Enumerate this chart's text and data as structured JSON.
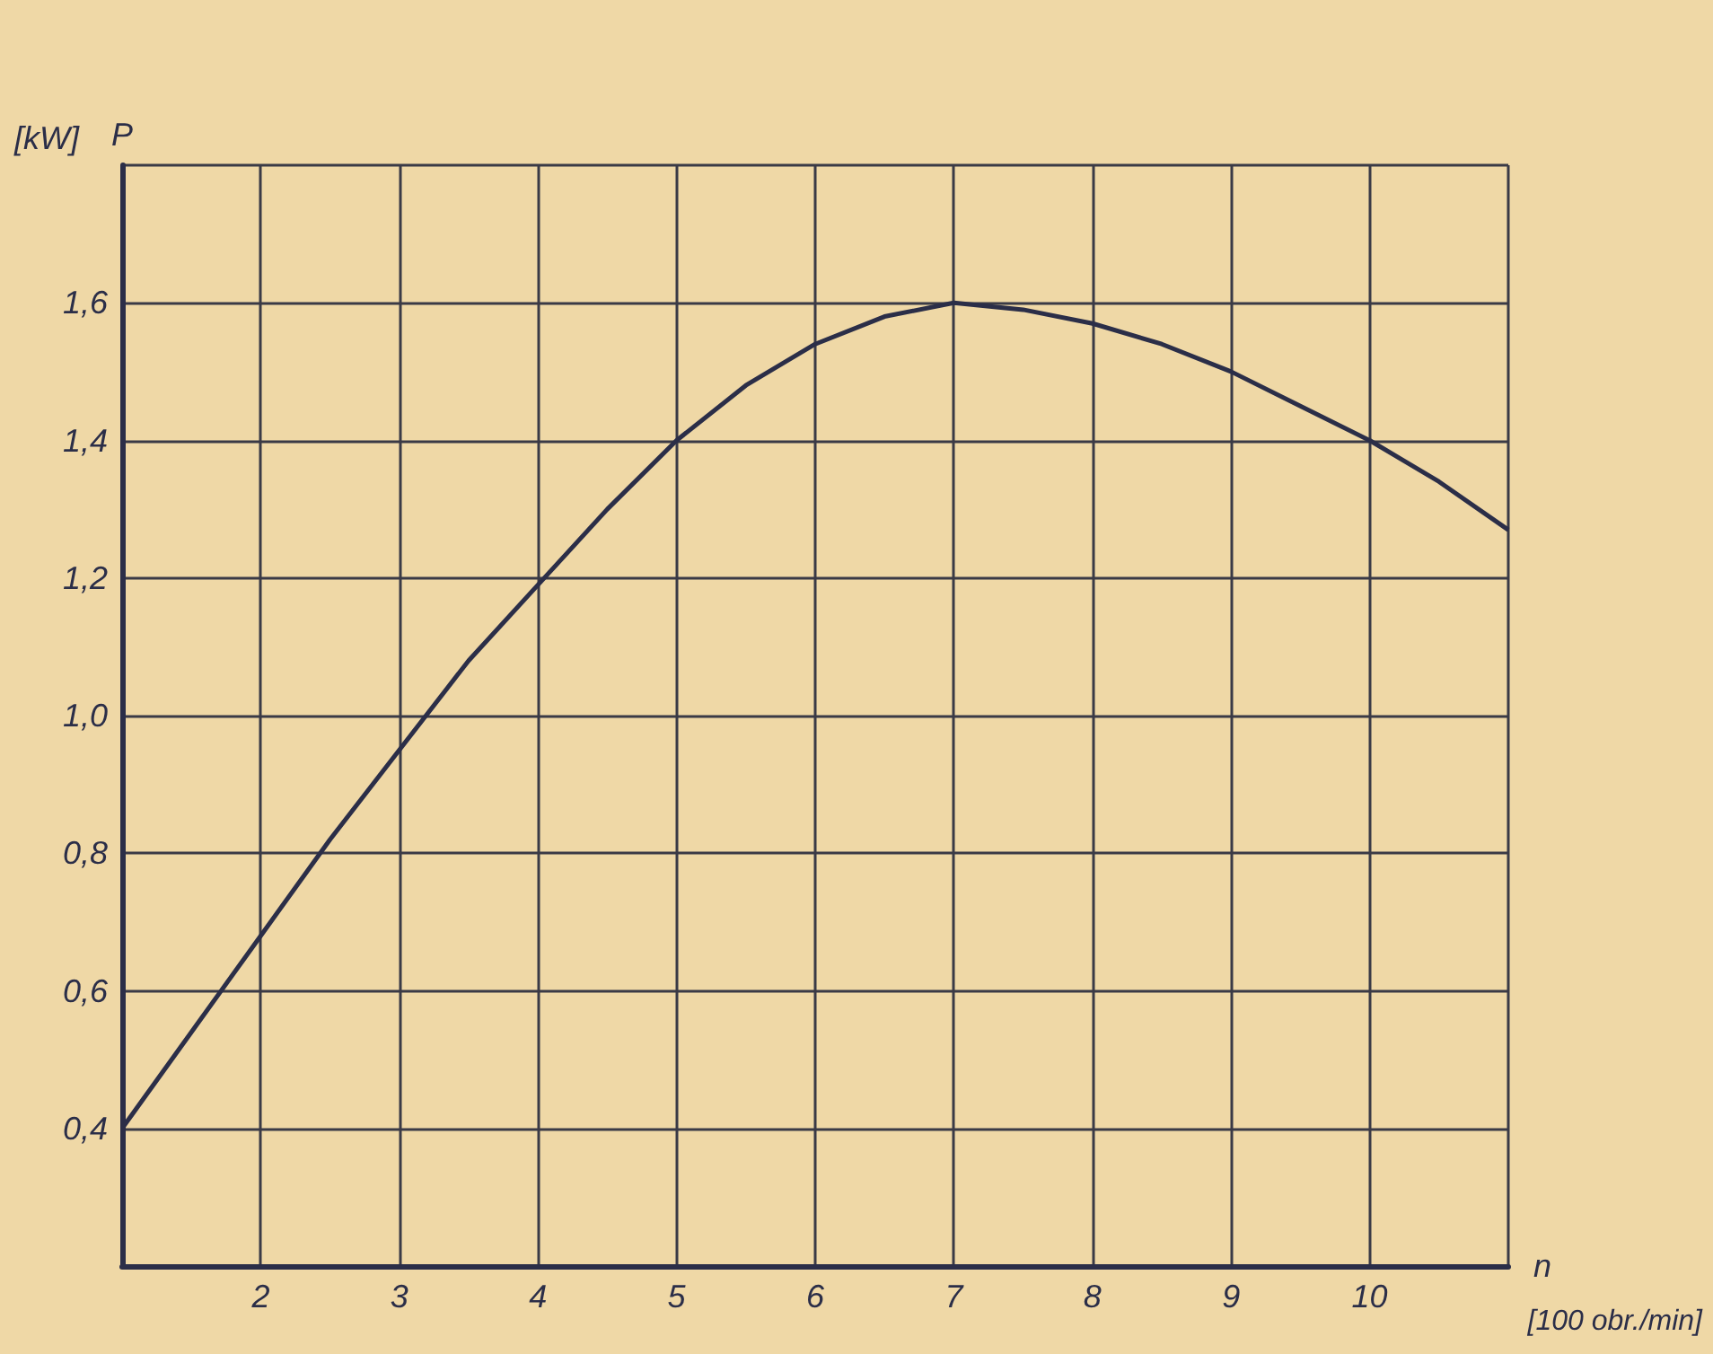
{
  "chart_data": {
    "type": "line",
    "xlabel": "n",
    "ylabel": "P",
    "annotations": [
      "[kW]",
      "[100 obr./min]"
    ],
    "x": [
      1,
      1.5,
      2,
      2.5,
      3,
      3.5,
      4,
      4.5,
      5,
      5.5,
      6,
      6.5,
      7,
      7.5,
      8,
      8.5,
      9,
      9.5,
      10,
      10.5,
      11
    ],
    "series": [
      {
        "color": "#2b2e48",
        "values": [
          0.4,
          0.54,
          0.68,
          0.82,
          0.95,
          1.08,
          1.19,
          1.3,
          1.4,
          1.48,
          1.54,
          1.58,
          1.6,
          1.59,
          1.57,
          1.54,
          1.5,
          1.45,
          1.4,
          1.34,
          1.27
        ]
      }
    ],
    "xlim": [
      1,
      11
    ],
    "ylim": [
      0.2,
      1.8
    ],
    "xticks": [
      {
        "value": 1,
        "label": null
      },
      2,
      3,
      4,
      5,
      6,
      7,
      8,
      9,
      10,
      {
        "value": 11,
        "label": null
      }
    ],
    "yticks": [
      {
        "value": 0.4,
        "label": "0,4"
      },
      {
        "value": 0.6,
        "label": "0,6"
      },
      {
        "value": 0.8,
        "label": "0,8"
      },
      {
        "value": 1.0,
        "label": "1,0"
      },
      {
        "value": 1.2,
        "label": "1,2"
      },
      {
        "value": 1.4,
        "label": "1,4"
      },
      {
        "value": 1.6,
        "label": "1,6"
      },
      {
        "value": 1.8,
        "label": null
      }
    ],
    "grid": true,
    "marker": "none",
    "line_style": "solid"
  }
}
